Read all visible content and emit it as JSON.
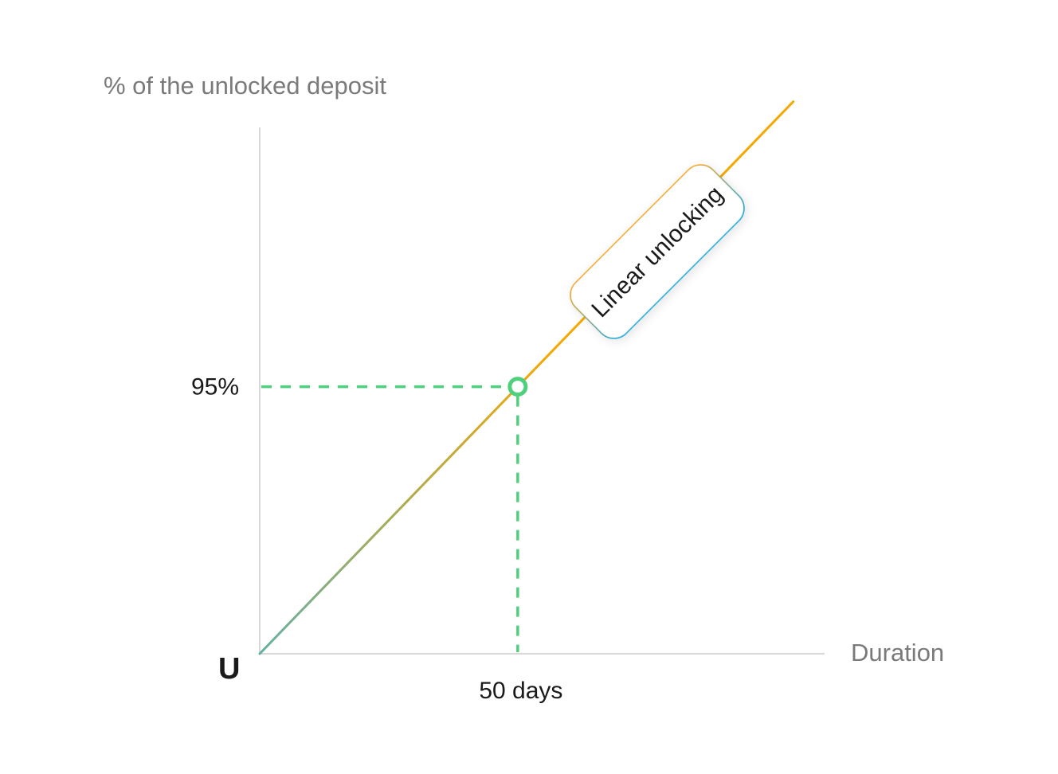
{
  "chart_data": {
    "type": "line",
    "ylabel": "% of the unlocked deposit",
    "xlabel": "Duration",
    "origin_label": "U",
    "series": [
      {
        "x": [
          0,
          103.4
        ],
        "y": [
          0,
          196.4
        ]
      }
    ],
    "highlight": {
      "x": 50,
      "y": 95,
      "x_label": "50 days",
      "y_label": "95%"
    },
    "annotation": "Linear unlocking",
    "xlim": [
      0,
      109
    ],
    "ylim": [
      0,
      196
    ],
    "grid": false,
    "colors": {
      "line_start": "#66b0a0",
      "line_end": "#f5a800",
      "highlight": "#4fd07c",
      "axis": "#cccccc",
      "callout_border_top": "#f5a623",
      "callout_border_bottom": "#19a8dc"
    }
  }
}
